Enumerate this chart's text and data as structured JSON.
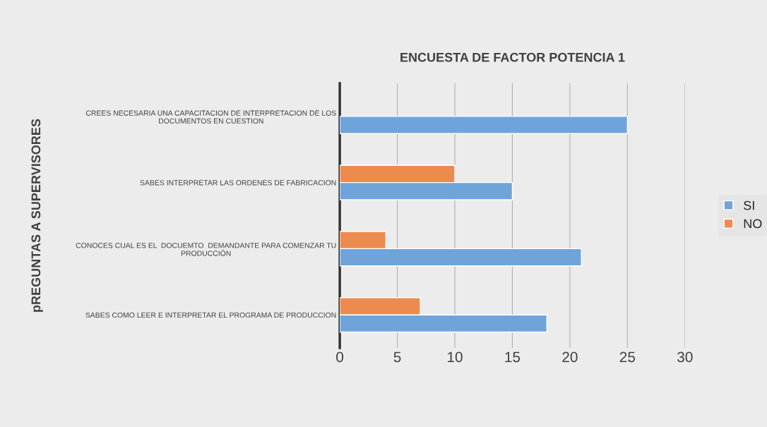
{
  "chart_data": {
    "type": "bar",
    "orientation": "horizontal",
    "title": "ENCUESTA DE FACTOR POTENCIA 1",
    "ylabel": "pREGUNTAS A SUPERVISORES",
    "categories": [
      "CREES NECESARIA UNA CAPACITACION DE INTERPRETACION DE LOS\nDOCUMENTOS EN CUESTION",
      "SABES INTERPRETAR LAS ORDENES DE FABRICACION",
      "CONOCES CUAL ES EL  DOCUEMTO  DEMANDANTE PARA COMENZAR TU\nPRODUCCIÓN",
      "SABES COMO LEER E INTERPRETAR EL PROGRAMA DE PRODUCCION"
    ],
    "series": [
      {
        "name": "NO",
        "color": "#ed8b4f",
        "values": [
          null,
          10,
          4,
          7
        ]
      },
      {
        "name": "SI",
        "color": "#6fa4db",
        "values": [
          25,
          15,
          21,
          18
        ]
      }
    ],
    "xlim": [
      0,
      30
    ],
    "xticks": [
      0,
      5,
      10,
      15,
      20,
      25,
      30
    ],
    "grid": "x",
    "legend": "right"
  }
}
